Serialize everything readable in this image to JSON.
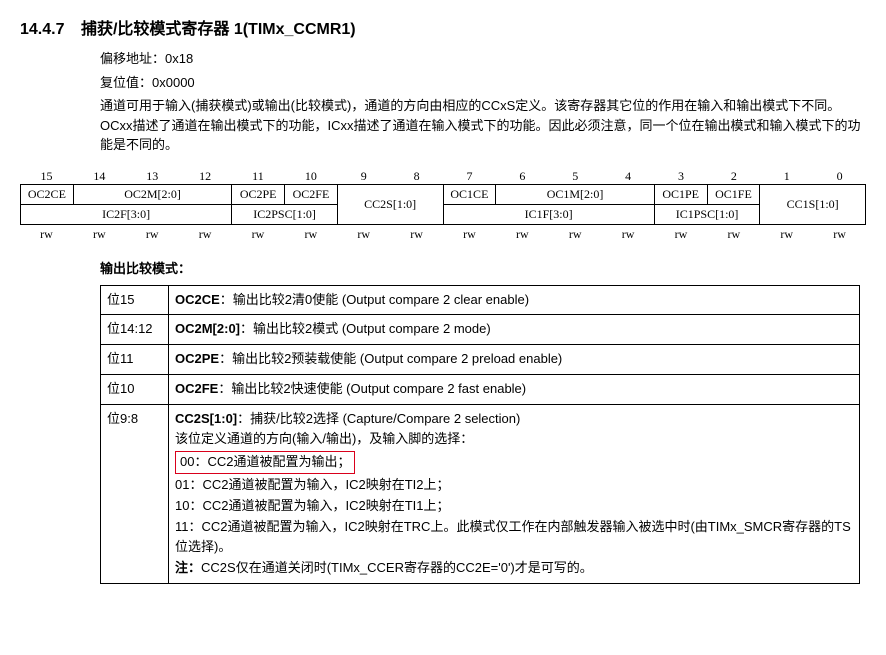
{
  "header": {
    "section_number": "14.4.7",
    "title": "捕获/比较模式寄存器 1(TIMx_CCMR1)"
  },
  "meta": {
    "offset_label": "偏移地址：",
    "offset_value": "0x18",
    "reset_label": "复位值：",
    "reset_value": "0x0000",
    "intro": "通道可用于输入(捕获模式)或输出(比较模式)，通道的方向由相应的CCxS定义。该寄存器其它位的作用在输入和输出模式下不同。OCxx描述了通道在输出模式下的功能，ICxx描述了通道在输入模式下的功能。因此必须注意，同一个位在输出模式和输入模式下的功能是不同的。"
  },
  "bits": {
    "numbers": [
      "15",
      "14",
      "13",
      "12",
      "11",
      "10",
      "9",
      "8",
      "7",
      "6",
      "5",
      "4",
      "3",
      "2",
      "1",
      "0"
    ],
    "output_row": {
      "c0": "OC2CE",
      "c1": "OC2M[2:0]",
      "c2": "OC2PE",
      "c3": "OC2FE",
      "c5": "OC1CE",
      "c6": "OC1M[2:0]",
      "c7": "OC1PE",
      "c8": "OC1FE"
    },
    "input_row": {
      "i0": "IC2F[3:0]",
      "i1": "IC2PSC[1:0]",
      "shared1": "CC2S[1:0]",
      "i2": "IC1F[3:0]",
      "i3": "IC1PSC[1:0]",
      "shared2": "CC1S[1:0]"
    },
    "rw": [
      "rw",
      "rw",
      "rw",
      "rw",
      "rw",
      "rw",
      "rw",
      "rw",
      "rw",
      "rw",
      "rw",
      "rw",
      "rw",
      "rw",
      "rw",
      "rw"
    ]
  },
  "output_mode_heading": "输出比较模式：",
  "desc": {
    "row1": {
      "bits": "位15",
      "label": "OC2CE",
      "text": "：输出比较2清0使能 (Output compare 2 clear enable)"
    },
    "row2": {
      "bits": "位14:12",
      "label": "OC2M[2:0]",
      "text": "：输出比较2模式 (Output compare 2 mode)"
    },
    "row3": {
      "bits": "位11",
      "label": "OC2PE",
      "text": "：输出比较2预装载使能 (Output compare 2 preload enable)"
    },
    "row4": {
      "bits": "位10",
      "label": "OC2FE",
      "text": "：输出比较2快速使能 (Output compare 2 fast enable)"
    },
    "row5": {
      "bits": "位9:8",
      "label": "CC2S[1:0]",
      "l1": "：捕获/比较2选择 (Capture/Compare 2 selection)",
      "l2": "该位定义通道的方向(输入/输出)，及输入脚的选择：",
      "l3": "00：CC2通道被配置为输出；",
      "l4": "01：CC2通道被配置为输入，IC2映射在TI2上；",
      "l5": "10：CC2通道被配置为输入，IC2映射在TI1上；",
      "l6": "11：CC2通道被配置为输入，IC2映射在TRC上。此模式仅工作在内部触发器输入被选中时(由TIMx_SMCR寄存器的TS位选择)。",
      "note_label": "注：",
      "note": "CC2S仅在通道关闭时(TIMx_CCER寄存器的CC2E='0')才是可写的。"
    }
  }
}
